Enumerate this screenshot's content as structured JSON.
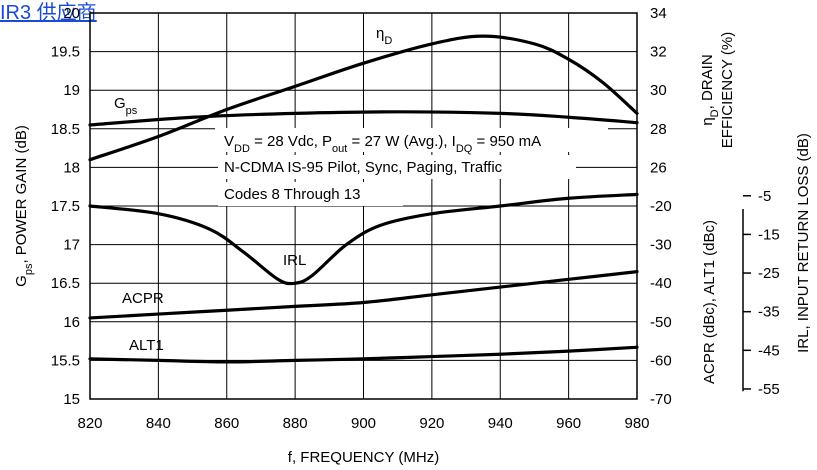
{
  "watermark": "IR3 供应商",
  "chart_data": {
    "type": "line",
    "xlabel": "f, FREQUENCY (MHz)",
    "x_ticks": [
      820,
      840,
      860,
      880,
      900,
      920,
      940,
      960,
      980
    ],
    "xlim": [
      820,
      980
    ],
    "left_axis": {
      "label_main": "G",
      "label_sub": "ps",
      "label_rest": ", POWER GAIN (dB)",
      "ylim": [
        15,
        20
      ],
      "ticks": [
        "15",
        "15.5",
        "16",
        "16.5",
        "17",
        "17.5",
        "18",
        "18.5",
        "19",
        "19.5",
        "20"
      ]
    },
    "right_axis_eff": {
      "label_line1": "η",
      "label_line1_sub": "D",
      "label_line1_rest": ", DRAIN",
      "label_line2": "EFFICIENCY (%)",
      "ticks": [
        "26",
        "28",
        "30",
        "32",
        "34"
      ],
      "ylim": [
        26,
        34
      ]
    },
    "right_axis_acpr": {
      "label": "ACPR (dBc), ALT1 (dBc)",
      "ticks": [
        "-70",
        "-60",
        "-50",
        "-40",
        "-30",
        "-20"
      ],
      "ylim": [
        -70,
        -20
      ]
    },
    "right_axis_irl": {
      "label": "IRL, INPUT RETURN LOSS (dB)",
      "ticks": [
        "-55",
        "-45",
        "-35",
        "-25",
        "-15",
        "-5"
      ]
    },
    "conditions": {
      "line1": "V",
      "line1_sub1": "DD",
      "line1_mid1": " = 28 Vdc, P",
      "line1_sub2": "out",
      "line1_mid2": " = 27 W (Avg.), I",
      "line1_sub3": "DQ",
      "line1_end": " = 950 mA",
      "line2": "N-CDMA IS-95 Pilot, Sync, Paging, Traffic",
      "line3": "Codes 8 Through 13"
    },
    "series": [
      {
        "name": "ηD",
        "label_main": "η",
        "label_sub": "D",
        "axis": "left_gain_equiv",
        "x": [
          820,
          840,
          860,
          880,
          900,
          920,
          935,
          950,
          960,
          970,
          980
        ],
        "values": [
          18.1,
          18.4,
          18.75,
          19.05,
          19.35,
          19.6,
          19.7,
          19.6,
          19.4,
          19.1,
          18.7
        ]
      },
      {
        "name": "Gps",
        "label_main": "G",
        "label_sub": "ps",
        "axis": "left",
        "x": [
          820,
          850,
          880,
          910,
          940,
          960,
          980
        ],
        "values": [
          18.55,
          18.65,
          18.7,
          18.72,
          18.7,
          18.65,
          18.58
        ]
      },
      {
        "name": "IRL",
        "label_main": "IRL",
        "axis": "left_gain_equiv",
        "x": [
          820,
          840,
          855,
          865,
          875,
          880,
          885,
          895,
          905,
          920,
          940,
          960,
          980
        ],
        "values": [
          17.5,
          17.4,
          17.2,
          16.9,
          16.55,
          16.5,
          16.6,
          17.0,
          17.25,
          17.4,
          17.5,
          17.6,
          17.65
        ]
      },
      {
        "name": "ACPR",
        "label_main": "ACPR",
        "axis": "left_gain_equiv",
        "x": [
          820,
          840,
          860,
          880,
          900,
          920,
          940,
          960,
          980
        ],
        "values": [
          16.05,
          16.1,
          16.15,
          16.2,
          16.25,
          16.35,
          16.45,
          16.55,
          16.65
        ]
      },
      {
        "name": "ALT1",
        "label_main": "ALT1",
        "axis": "left_gain_equiv",
        "x": [
          820,
          840,
          860,
          880,
          900,
          920,
          940,
          960,
          980
        ],
        "values": [
          15.52,
          15.5,
          15.48,
          15.5,
          15.52,
          15.55,
          15.58,
          15.62,
          15.67
        ]
      }
    ]
  }
}
